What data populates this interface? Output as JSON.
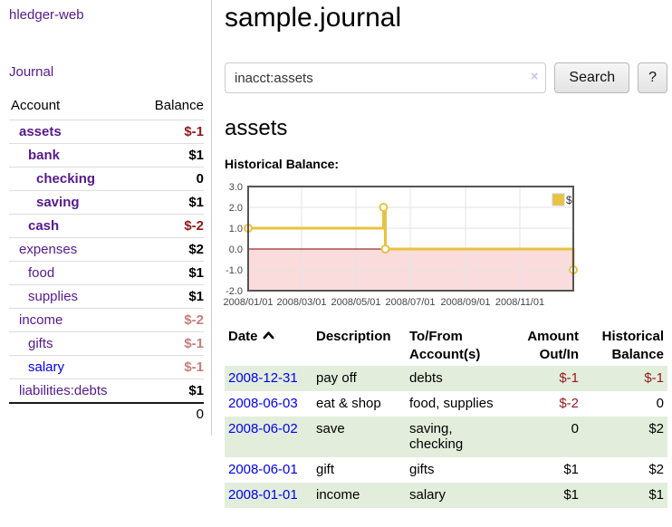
{
  "app": {
    "brand": "hledger-web",
    "nav_journal": "Journal"
  },
  "sidebar": {
    "col_account": "Account",
    "col_balance": "Balance",
    "total": "0",
    "rows": [
      {
        "label": "assets",
        "balance": "$-1",
        "depth": 1,
        "bold": true,
        "balance_class": "neg-strong"
      },
      {
        "label": "bank",
        "balance": "$1",
        "depth": 2,
        "bold": true,
        "balance_class": "pos"
      },
      {
        "label": "checking",
        "balance": "0",
        "depth": 3,
        "bold": true,
        "balance_class": "pos"
      },
      {
        "label": "saving",
        "balance": "$1",
        "depth": 3,
        "bold": true,
        "balance_class": "pos"
      },
      {
        "label": "cash",
        "balance": "$-2",
        "depth": 2,
        "bold": true,
        "balance_class": "neg-strong"
      },
      {
        "label": "expenses",
        "balance": "$2",
        "depth": 1,
        "bold": false,
        "balance_class": "pos"
      },
      {
        "label": "food",
        "balance": "$1",
        "depth": 2,
        "bold": false,
        "balance_class": "pos"
      },
      {
        "label": "supplies",
        "balance": "$1",
        "depth": 2,
        "bold": false,
        "balance_class": "pos"
      },
      {
        "label": "income",
        "balance": "$-2",
        "depth": 1,
        "bold": false,
        "balance_class": "neg-soft"
      },
      {
        "label": "gifts",
        "balance": "$-1",
        "depth": 2,
        "bold": false,
        "balance_class": "neg-soft"
      },
      {
        "label": "salary",
        "balance": "$-1",
        "depth": 2,
        "bold": false,
        "balance_class": "neg-soft",
        "blue": true
      },
      {
        "label": "liabilities:debts",
        "balance": "$1",
        "depth": 1,
        "bold": false,
        "balance_class": "pos"
      }
    ]
  },
  "main": {
    "title": "sample.journal",
    "search": {
      "value": "inacct:assets",
      "clear_icon": "×",
      "button_label": "Search",
      "help_label": "?"
    },
    "account_heading": "assets",
    "chart_label": "Historical Balance:"
  },
  "chart_data": {
    "type": "line",
    "style": "steps",
    "title": "Historical Balance",
    "series": [
      {
        "name": "$",
        "color": "#e8c240",
        "points": [
          {
            "date": "2008/01/01",
            "value": 1.0
          },
          {
            "date": "2008/06/01",
            "value": 2.0
          },
          {
            "date": "2008/06/03",
            "value": 0.0
          },
          {
            "date": "2008/12/31",
            "value": -1.0
          }
        ]
      }
    ],
    "xlim": [
      "2008/01/01",
      "2008/12/31"
    ],
    "ylim": [
      -2.0,
      3.0
    ],
    "xticks": [
      "2008/01/01",
      "2008/03/01",
      "2008/05/01",
      "2008/07/01",
      "2008/09/01",
      "2008/11/01"
    ],
    "yticks": [
      3.0,
      2.0,
      1.0,
      0.0,
      -1.0,
      -2.0
    ],
    "legend": {
      "label": "$",
      "position": "top-right"
    },
    "grid": true,
    "colors": {
      "grid": "#e3e3e3",
      "plot_border": "#545454",
      "zero_line": "#7c0000",
      "negative_fill": "#fadcdc",
      "tick_text": "#454545",
      "legend_box_border": "#cccccc"
    }
  },
  "register": {
    "headers": {
      "date": "Date",
      "date_sort": "ascending",
      "description": "Description",
      "account_line1": "To/From",
      "account_line2": "Account(s)",
      "amount_line1": "Amount",
      "amount_line2": "Out/In",
      "balance_line1": "Historical",
      "balance_line2": "Balance"
    },
    "rows": [
      {
        "date": "2008-12-31",
        "description": "pay off",
        "accounts": "debts",
        "amount": "$-1",
        "balance": "$-1"
      },
      {
        "date": "2008-06-03",
        "description": "eat & shop",
        "accounts": "food, supplies",
        "amount": "$-2",
        "balance": "0"
      },
      {
        "date": "2008-06-02",
        "description": "save",
        "accounts": "saving, checking",
        "amount": "0",
        "balance": "$2"
      },
      {
        "date": "2008-06-01",
        "description": "gift",
        "accounts": "gifts",
        "amount": "$1",
        "balance": "$2"
      },
      {
        "date": "2008-01-01",
        "description": "income",
        "accounts": "salary",
        "amount": "$1",
        "balance": "$1"
      }
    ]
  }
}
